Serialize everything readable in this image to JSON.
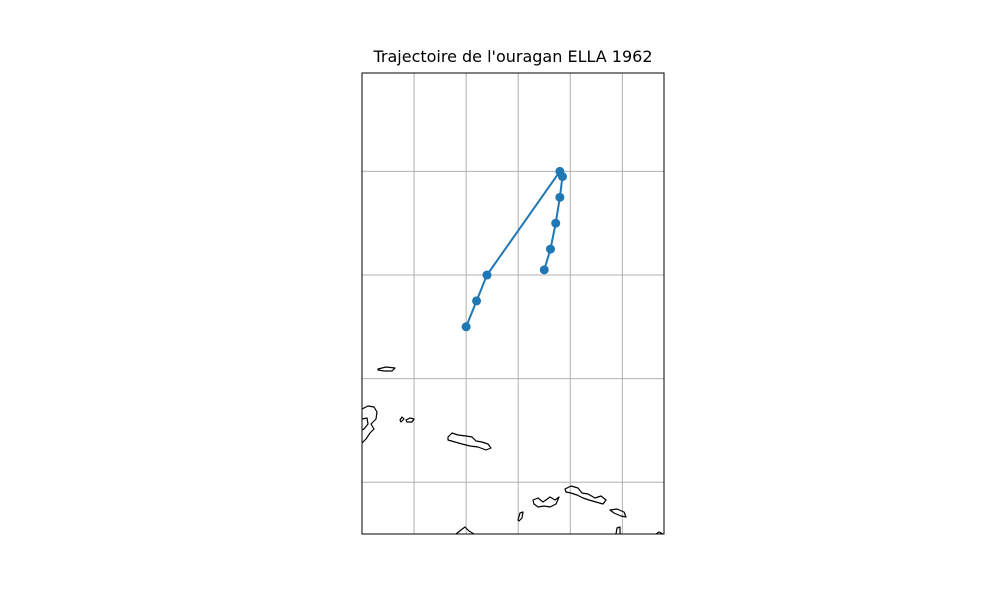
{
  "title": "Trajectoire de l'ouragan ELLA 1962",
  "style": {
    "track_color": "#1f77b4",
    "coast_color": "#000000",
    "grid_color": "#b0b0b0",
    "frame_color": "#000000"
  },
  "map": {
    "grid": true,
    "lon_range": [
      -73.5,
      -67.7
    ],
    "lat_range": [
      14.8,
      23.7
    ],
    "gridlines_lon": [
      -72.5,
      -71.5,
      -70.5,
      -69.5,
      -68.5
    ],
    "gridlines_lat": [
      15.8,
      17.8,
      19.8,
      21.8
    ]
  },
  "track": {
    "name": "ELLA 1962",
    "points": [
      {
        "lon": -71.5,
        "lat": 18.8
      },
      {
        "lon": -71.3,
        "lat": 19.3
      },
      {
        "lon": -71.1,
        "lat": 19.8
      },
      {
        "lon": -69.7,
        "lat": 21.8
      },
      {
        "lon": -69.65,
        "lat": 21.7
      },
      {
        "lon": -69.7,
        "lat": 21.3
      },
      {
        "lon": -69.78,
        "lat": 20.8
      },
      {
        "lon": -69.88,
        "lat": 20.3
      },
      {
        "lon": -70.0,
        "lat": 19.9
      }
    ]
  }
}
